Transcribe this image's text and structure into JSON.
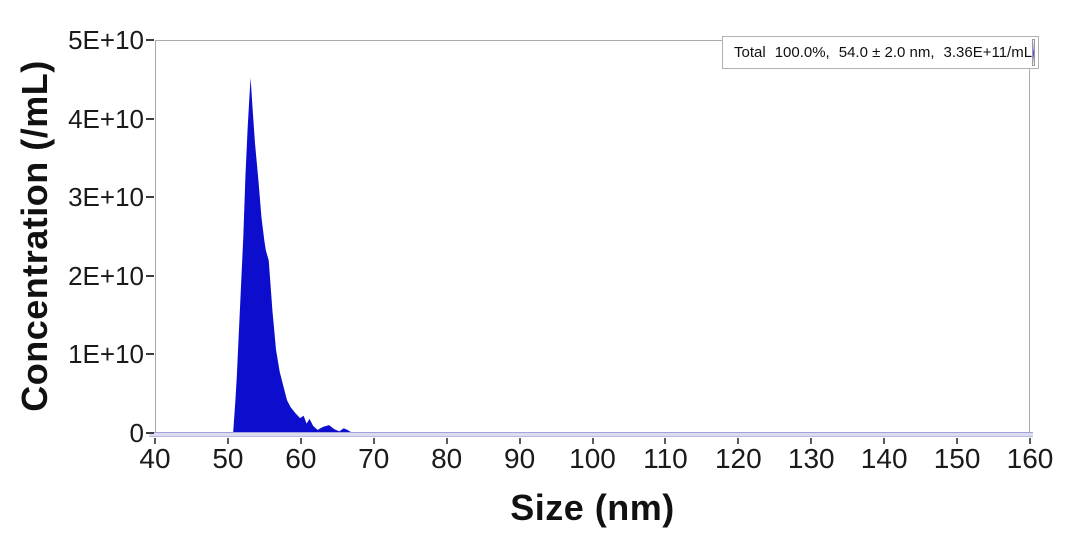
{
  "chart_data": {
    "type": "area",
    "title": "",
    "xlabel": "Size (nm)",
    "ylabel": "Concentration (/mL)",
    "xlim": [
      40,
      160
    ],
    "ylim": [
      0,
      50000000000.0
    ],
    "grid": false,
    "legend_position": "top-right",
    "x_ticks": [
      {
        "value": 40,
        "label": "40"
      },
      {
        "value": 50,
        "label": "50"
      },
      {
        "value": 60,
        "label": "60"
      },
      {
        "value": 70,
        "label": "70"
      },
      {
        "value": 80,
        "label": "80"
      },
      {
        "value": 90,
        "label": "90"
      },
      {
        "value": 100,
        "label": "100"
      },
      {
        "value": 110,
        "label": "110"
      },
      {
        "value": 120,
        "label": "120"
      },
      {
        "value": 130,
        "label": "130"
      },
      {
        "value": 140,
        "label": "140"
      },
      {
        "value": 150,
        "label": "150"
      },
      {
        "value": 160,
        "label": "160"
      }
    ],
    "y_ticks": [
      {
        "value": 0,
        "label": "0"
      },
      {
        "value": 10000000000.0,
        "label": "1E+10"
      },
      {
        "value": 20000000000.0,
        "label": "2E+10"
      },
      {
        "value": 30000000000.0,
        "label": "3E+10"
      },
      {
        "value": 40000000000.0,
        "label": "4E+10"
      },
      {
        "value": 50000000000.0,
        "label": "5E+10"
      }
    ],
    "series": [
      {
        "name": "Total",
        "color": "#0d0dce",
        "peak_mode_nm": 53.0,
        "points": [
          [
            40,
            0
          ],
          [
            50.6,
            0
          ],
          [
            50.9,
            4000000000.0
          ],
          [
            51.1,
            7000000000.0
          ],
          [
            51.4,
            13000000000.0
          ],
          [
            51.7,
            19000000000.0
          ],
          [
            52.0,
            25000000000.0
          ],
          [
            52.3,
            33000000000.0
          ],
          [
            52.6,
            39000000000.0
          ],
          [
            52.85,
            43000000000.0
          ],
          [
            53.0,
            45300000000.0
          ],
          [
            53.3,
            41000000000.0
          ],
          [
            53.6,
            37000000000.0
          ],
          [
            54.1,
            32000000000.0
          ],
          [
            54.5,
            27500000000.0
          ],
          [
            54.9,
            24500000000.0
          ],
          [
            55.1,
            23300000000.0
          ],
          [
            55.5,
            22000000000.0
          ],
          [
            56.0,
            15600000000.0
          ],
          [
            56.5,
            10600000000.0
          ],
          [
            57.0,
            7800000000.0
          ],
          [
            57.5,
            6000000000.0
          ],
          [
            58.0,
            4200000000.0
          ],
          [
            58.5,
            3300000000.0
          ],
          [
            59.2,
            2500000000.0
          ],
          [
            59.8,
            1900000000.0
          ],
          [
            60.3,
            2200000000.0
          ],
          [
            60.7,
            1200000000.0
          ],
          [
            61.1,
            1800000000.0
          ],
          [
            61.6,
            900000000.0
          ],
          [
            62.2,
            400000000.0
          ],
          [
            63.0,
            800000000.0
          ],
          [
            63.8,
            1000000000.0
          ],
          [
            64.5,
            500000000.0
          ],
          [
            65.2,
            200000000.0
          ],
          [
            65.8,
            600000000.0
          ],
          [
            66.3,
            400000000.0
          ],
          [
            67.0,
            0
          ],
          [
            160,
            0
          ]
        ]
      }
    ]
  },
  "legend": {
    "label": "Total",
    "percent": "100.0%,",
    "size": "54.0 ± 2.0 nm,",
    "concentration": "3.36E+11/mL",
    "icon": "wave-peak-icon",
    "icon_color": "#1212d2"
  },
  "colors": {
    "series_blue": "#0d0dce",
    "axis_band": "#dcdcf0",
    "plot_border": "#ababab",
    "text": "#1a1a1a"
  }
}
